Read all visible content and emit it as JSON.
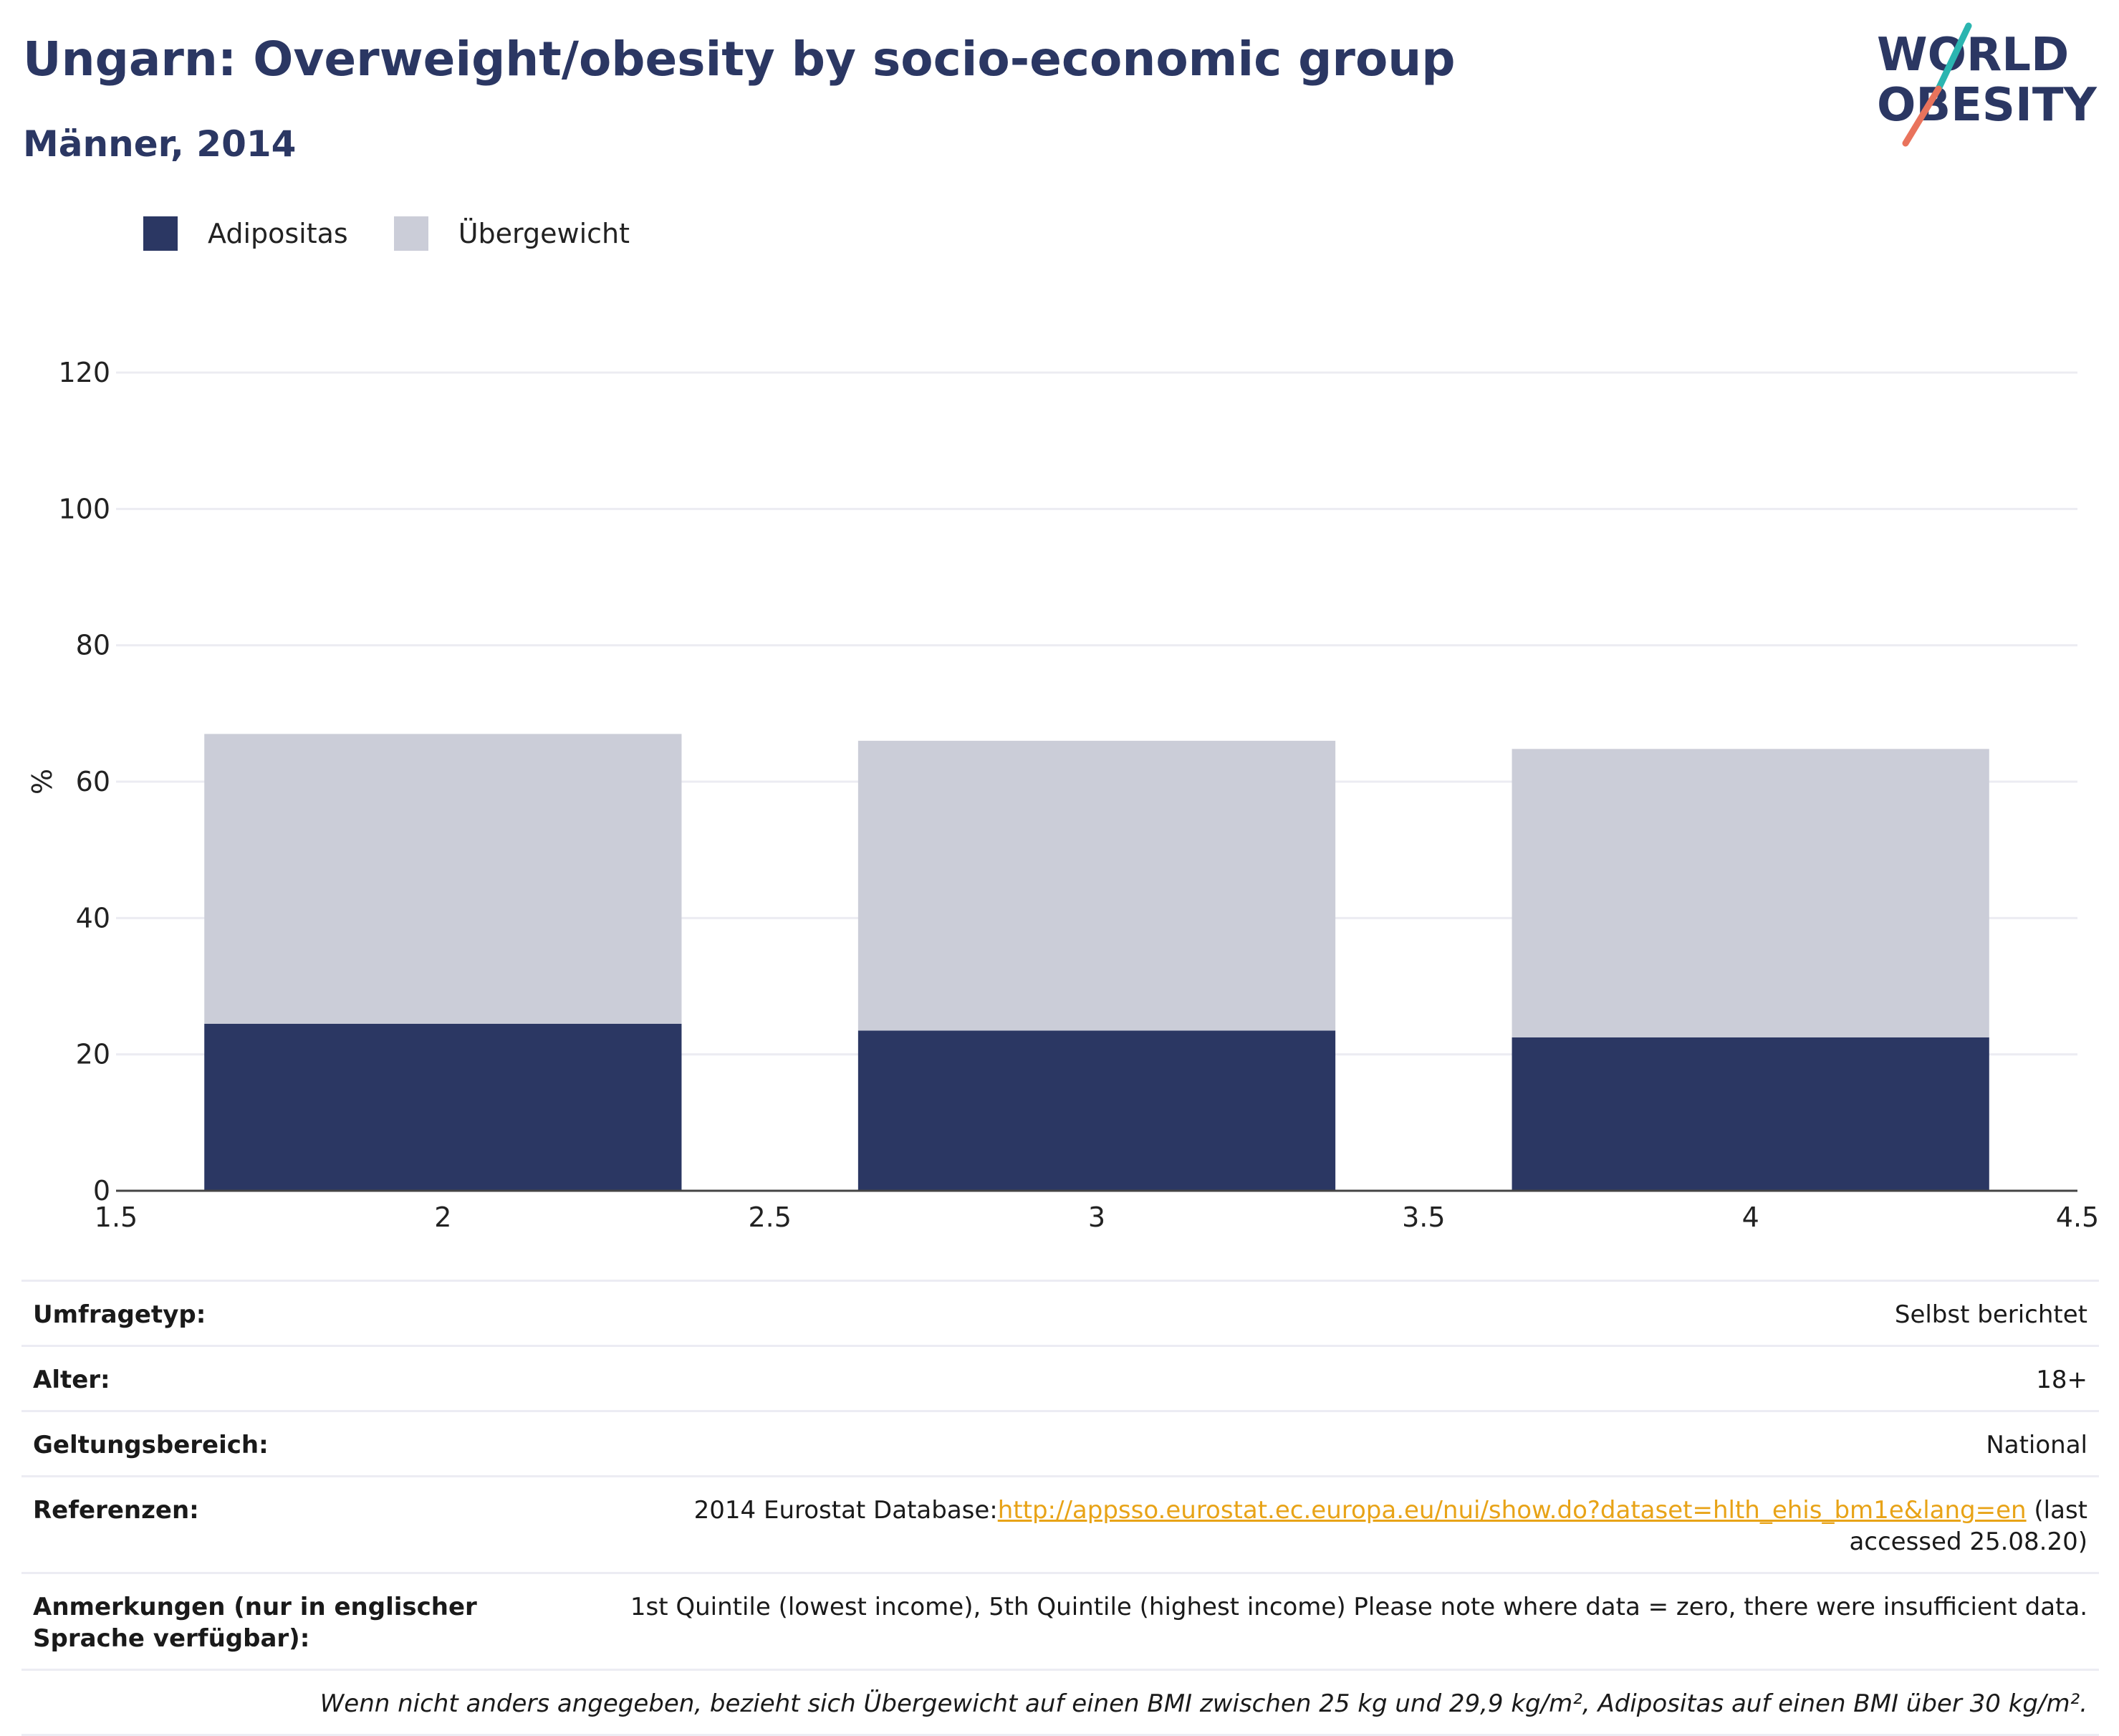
{
  "header": {
    "title": "Ungarn: Overweight/obesity by socio-economic group",
    "subtitle": "Männer, 2014"
  },
  "logo": {
    "line1": "WORLD",
    "line2": "OBESITY"
  },
  "colors": {
    "obesity": "#2b3763",
    "overweight": "#cbcdd8",
    "title": "#2b3763",
    "link": "#e8a317",
    "logo_teal": "#2bb5b0",
    "logo_coral": "#e9735c"
  },
  "legend": [
    {
      "label": "Adipositas",
      "color": "#2b3763"
    },
    {
      "label": "Übergewicht",
      "color": "#cbcdd8"
    }
  ],
  "chart_data": {
    "type": "bar",
    "stacked": true,
    "x": [
      2,
      3,
      4
    ],
    "series": [
      {
        "name": "Adipositas",
        "values": [
          24.5,
          23.5,
          22.5
        ]
      },
      {
        "name": "Übergewicht",
        "values": [
          42.5,
          42.5,
          42.3
        ]
      }
    ],
    "xlim": [
      1.5,
      4.5
    ],
    "ylim": [
      0,
      120
    ],
    "xticks": [
      "1.5",
      "2",
      "2.5",
      "3",
      "3.5",
      "4",
      "4.5"
    ],
    "yticks": [
      "0",
      "20",
      "40",
      "60",
      "80",
      "100",
      "120"
    ],
    "ylabel": "%",
    "xlabel": "",
    "grid": true,
    "legend_position": "top-left"
  },
  "info": {
    "survey_type": {
      "label": "Umfragetyp:",
      "value": "Selbst berichtet"
    },
    "age": {
      "label": "Alter:",
      "value": "18+"
    },
    "scope": {
      "label": "Geltungsbereich:",
      "value": "National"
    },
    "references": {
      "label": "Referenzen:",
      "prefix": "2014 Eurostat Database:",
      "link": "http://appsso.eurostat.ec.europa.eu/nui/show.do?dataset=hlth_ehis_bm1e&lang=en",
      "suffix": " (last accessed 25.08.20)"
    },
    "notes": {
      "label": "Anmerkungen (nur in englischer Sprache verfügbar):",
      "value": "1st Quintile (lowest income), 5th Quintile (highest income) Please note where data = zero, there were insufficient data."
    },
    "footnote": "Wenn nicht anders angegeben, bezieht sich Übergewicht auf einen BMI zwischen 25 kg und 29,9 kg/m², Adipositas auf einen BMI über 30 kg/m²."
  }
}
